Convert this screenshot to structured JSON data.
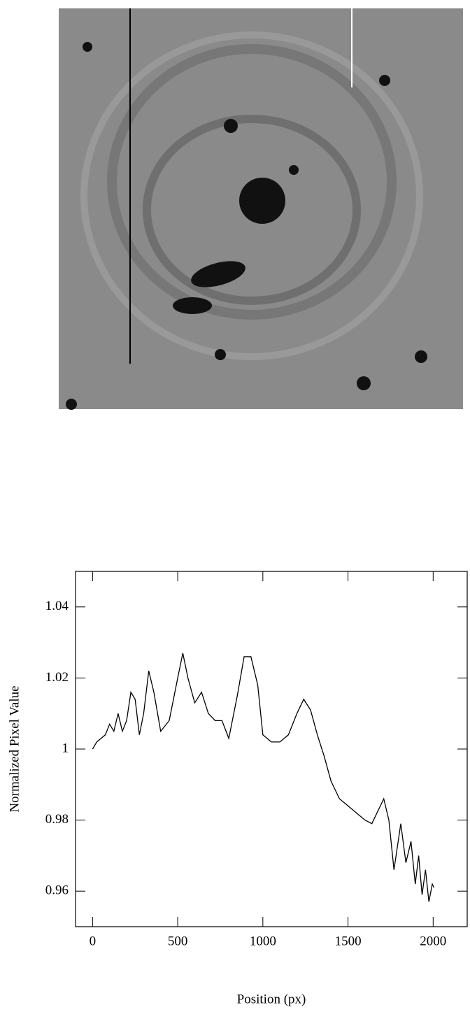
{
  "chart_data": {
    "type": "line",
    "x_label": "Position (px)",
    "y_label": "Normalized Pixel Value",
    "xlim": [
      -100,
      2200
    ],
    "ylim": [
      0.95,
      1.05
    ],
    "xticks": [
      0,
      500,
      1000,
      1500,
      2000
    ],
    "yticks": [
      0.96,
      0.98,
      1,
      1.02,
      1.04
    ],
    "series": [
      {
        "color": "#000000",
        "x": [
          0,
          25,
          50,
          75,
          100,
          125,
          150,
          175,
          200,
          225,
          250,
          275,
          300,
          330,
          360,
          400,
          450,
          500,
          530,
          560,
          600,
          640,
          680,
          720,
          760,
          800,
          850,
          890,
          930,
          970,
          1000,
          1050,
          1100,
          1150,
          1200,
          1240,
          1280,
          1320,
          1360,
          1400,
          1450,
          1500,
          1550,
          1600,
          1640,
          1680,
          1710,
          1740,
          1770,
          1810,
          1840,
          1870,
          1895,
          1915,
          1935,
          1955,
          1975,
          1995,
          2005
        ],
        "values": [
          1.0,
          1.002,
          1.003,
          1.004,
          1.007,
          1.005,
          1.01,
          1.005,
          1.008,
          1.016,
          1.014,
          1.004,
          1.01,
          1.022,
          1.016,
          1.005,
          1.008,
          1.02,
          1.027,
          1.02,
          1.013,
          1.016,
          1.01,
          1.008,
          1.008,
          1.003,
          1.015,
          1.026,
          1.026,
          1.018,
          1.004,
          1.002,
          1.002,
          1.004,
          1.01,
          1.014,
          1.011,
          1.004,
          0.998,
          0.991,
          0.986,
          0.984,
          0.982,
          0.98,
          0.979,
          0.983,
          0.986,
          0.98,
          0.966,
          0.979,
          0.968,
          0.974,
          0.962,
          0.97,
          0.959,
          0.966,
          0.957,
          0.962,
          0.961
        ]
      }
    ]
  }
}
